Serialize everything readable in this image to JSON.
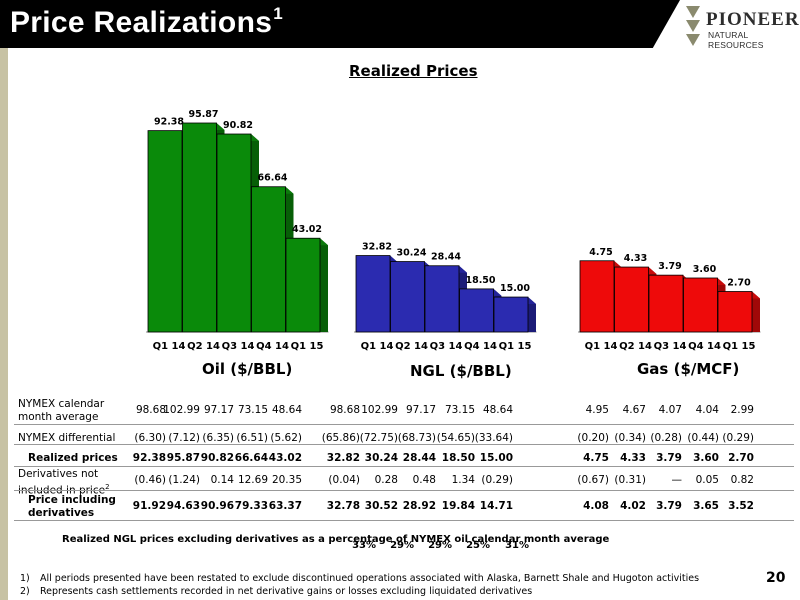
{
  "header": {
    "title": "Price Realizations",
    "title_sup": "1"
  },
  "logo": {
    "name": "PIONEER",
    "subtitle": "NATURAL RESOURCES"
  },
  "chart_heading": "Realized Prices",
  "chart_data": [
    {
      "type": "bar",
      "title": "Oil ($/BBL)",
      "categories": [
        "Q1 14",
        "Q2 14",
        "Q3 14",
        "Q4 14",
        "Q1 15"
      ],
      "values": [
        92.38,
        95.87,
        90.82,
        66.64,
        43.02
      ],
      "labels": [
        "92.38",
        "95.87",
        "90.82",
        "66.64",
        "43.02"
      ],
      "color": "#0a8a0a"
    },
    {
      "type": "bar",
      "title": "NGL ($/BBL)",
      "categories": [
        "Q1 14",
        "Q2 14",
        "Q3 14",
        "Q4 14",
        "Q1 15"
      ],
      "values": [
        32.82,
        30.24,
        28.44,
        18.5,
        15.0
      ],
      "labels": [
        "32.82",
        "30.24",
        "28.44",
        "18.50",
        "15.00"
      ],
      "color": "#2b2bb0"
    },
    {
      "type": "bar",
      "title": "Gas ($/MCF)",
      "categories": [
        "Q1 14",
        "Q2 14",
        "Q3 14",
        "Q4 14",
        "Q1 15"
      ],
      "values": [
        4.75,
        4.33,
        3.79,
        3.6,
        2.7
      ],
      "labels": [
        "4.75",
        "4.33",
        "3.79",
        "3.60",
        "2.70"
      ],
      "color": "#ee0a0a"
    }
  ],
  "table": {
    "rows": [
      {
        "label": "NYMEX calendar month average",
        "bold": false,
        "oil": [
          "98.68",
          "102.99",
          "97.17",
          "73.15",
          "48.64"
        ],
        "ngl": [
          "98.68",
          "102.99",
          "97.17",
          "73.15",
          "48.64"
        ],
        "gas": [
          "4.95",
          "4.67",
          "4.07",
          "4.04",
          "2.99"
        ]
      },
      {
        "label": "NYMEX differential",
        "bold": false,
        "oil": [
          "(6.30)",
          "(7.12)",
          "(6.35)",
          "(6.51)",
          "(5.62)"
        ],
        "ngl": [
          "(65.86)",
          "(72.75)",
          "(68.73)",
          "(54.65)",
          "(33.64)"
        ],
        "gas": [
          "(0.20)",
          "(0.34)",
          "(0.28)",
          "(0.44)",
          "(0.29)"
        ]
      },
      {
        "label": "Realized prices",
        "bold": true,
        "oil": [
          "92.38",
          "95.87",
          "90.82",
          "66.64",
          "43.02"
        ],
        "ngl": [
          "32.82",
          "30.24",
          "28.44",
          "18.50",
          "15.00"
        ],
        "gas": [
          "4.75",
          "4.33",
          "3.79",
          "3.60",
          "2.70"
        ]
      },
      {
        "label": "Derivatives not included in price",
        "label_sup": "2",
        "bold": false,
        "oil": [
          "(0.46)",
          "(1.24)",
          "0.14",
          "12.69",
          "20.35"
        ],
        "ngl": [
          "(0.04)",
          "0.28",
          "0.48",
          "1.34",
          "(0.29)"
        ],
        "gas": [
          "(0.67)",
          "(0.31)",
          "—",
          "0.05",
          "0.82"
        ]
      },
      {
        "label": "Price including derivatives",
        "bold": true,
        "oil": [
          "91.92",
          "94.63",
          "90.96",
          "79.33",
          "63.37"
        ],
        "ngl": [
          "32.78",
          "30.52",
          "28.92",
          "19.84",
          "14.71"
        ],
        "gas": [
          "4.08",
          "4.02",
          "3.79",
          "3.65",
          "3.52"
        ]
      }
    ],
    "pct_label": "Realized NGL prices excluding derivatives as a percentage of NYMEX oil calendar month average",
    "pct_values": [
      "33%",
      "29%",
      "29%",
      "25%",
      "31%"
    ]
  },
  "footnotes": [
    {
      "num": "1)",
      "text": "All periods presented have been restated to exclude discontinued operations associated with Alaska, Barnett Shale and Hugoton activities"
    },
    {
      "num": "2)",
      "text": "Represents cash settlements recorded in net derivative gains or losses excluding liquidated derivatives"
    }
  ],
  "page_number": "20"
}
